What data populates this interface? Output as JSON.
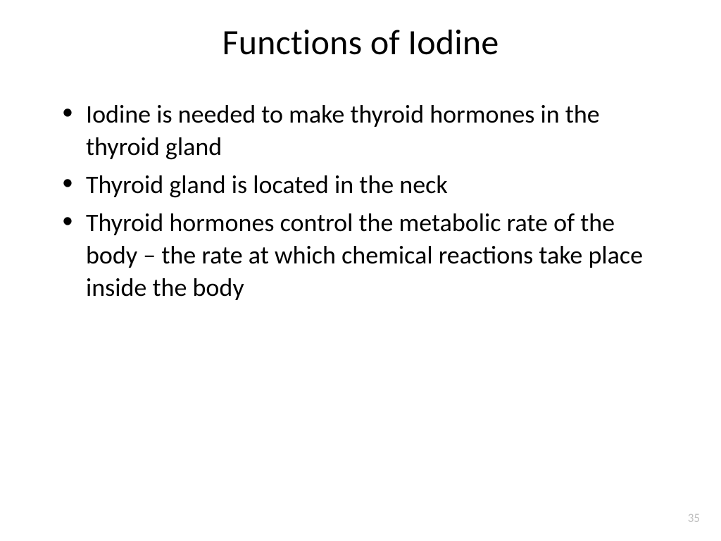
{
  "slide": {
    "title": "Functions of Iodine",
    "bullets": [
      "Iodine is needed to make thyroid hormones in the thyroid gland",
      "Thyroid gland is located in the neck",
      "Thyroid hormones control the metabolic rate of the body – the rate at which chemical reactions take place inside the body"
    ],
    "page_number": "35",
    "background_color": "#ffffff",
    "text_color": "#000000",
    "page_num_color": "#bfbfbf",
    "title_fontsize": 50,
    "bullet_fontsize": 36
  }
}
